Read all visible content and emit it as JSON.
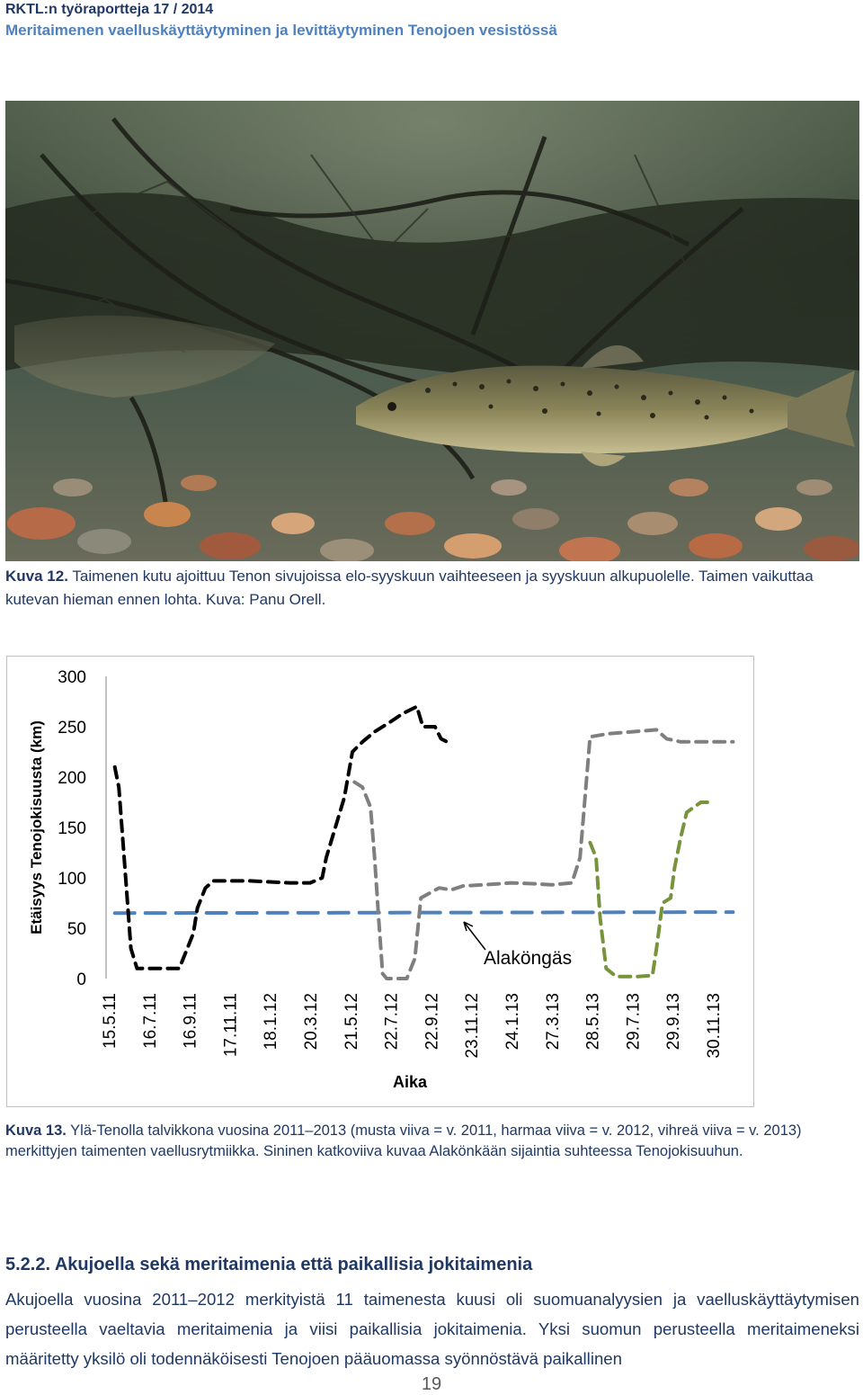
{
  "header": {
    "series": "RKTL:n työraportteja 17 / 2014",
    "title": "Meritaimenen vaelluskäyttäytyminen ja levittäytyminen Tenojoen vesistössä"
  },
  "figure12": {
    "caption_label": "Kuva 12.",
    "caption_text": "Taimenen kutu ajoittuu Tenon sivujoissa elo-syyskuun vaihteeseen ja syyskuun alkupuolelle. Taimen vaikuttaa kutevan hieman ennen lohta. Kuva: Panu Orell."
  },
  "chart_data": {
    "type": "line",
    "ylabel": "Etäisyys Tenojokisuusta (km)",
    "xlabel": "Aika",
    "ylim": [
      0,
      300
    ],
    "yticks": [
      "0",
      "50",
      "100",
      "150",
      "200",
      "250",
      "300"
    ],
    "xticks": [
      "15.5.11",
      "16.7.11",
      "16.9.11",
      "17.11.11",
      "18.1.12",
      "20.3.12",
      "21.5.12",
      "22.7.12",
      "22.9.12",
      "23.11.12",
      "24.1.13",
      "27.3.13",
      "28.5.13",
      "29.7.13",
      "29.9.13",
      "30.11.13"
    ],
    "annotation": "Alaköngäs",
    "series": [
      {
        "color": "#000000",
        "points": [
          [
            0.15,
            210
          ],
          [
            0.25,
            190
          ],
          [
            0.42,
            100
          ],
          [
            0.55,
            30
          ],
          [
            0.7,
            10
          ],
          [
            0.9,
            10
          ],
          [
            1.3,
            10
          ],
          [
            1.75,
            10
          ],
          [
            1.95,
            30
          ],
          [
            2.1,
            45
          ],
          [
            2.2,
            70
          ],
          [
            2.4,
            90
          ],
          [
            2.6,
            97
          ],
          [
            3.0,
            97
          ],
          [
            3.5,
            97
          ],
          [
            4.0,
            96
          ],
          [
            4.5,
            95
          ],
          [
            5.0,
            95
          ],
          [
            5.3,
            100
          ],
          [
            5.4,
            120
          ],
          [
            5.7,
            160
          ],
          [
            5.85,
            180
          ],
          [
            6.05,
            225
          ],
          [
            6.3,
            235
          ],
          [
            6.6,
            245
          ],
          [
            7.0,
            255
          ],
          [
            7.3,
            263
          ],
          [
            7.65,
            270
          ],
          [
            7.8,
            250
          ],
          [
            8.1,
            250
          ],
          [
            8.25,
            238
          ],
          [
            8.4,
            235
          ]
        ]
      },
      {
        "color": "#7f7f7f",
        "points": [
          [
            6.1,
            195
          ],
          [
            6.3,
            190
          ],
          [
            6.5,
            170
          ],
          [
            6.6,
            120
          ],
          [
            6.7,
            60
          ],
          [
            6.8,
            5
          ],
          [
            6.9,
            0
          ],
          [
            7.1,
            0
          ],
          [
            7.4,
            0
          ],
          [
            7.6,
            20
          ],
          [
            7.75,
            80
          ],
          [
            8.2,
            90
          ],
          [
            8.5,
            88
          ],
          [
            8.8,
            92
          ],
          [
            9.3,
            93
          ],
          [
            10.0,
            95
          ],
          [
            10.6,
            94
          ],
          [
            11.0,
            93
          ],
          [
            11.5,
            95
          ],
          [
            11.7,
            120
          ],
          [
            11.95,
            240
          ],
          [
            12.4,
            243
          ],
          [
            13.0,
            245
          ],
          [
            13.6,
            247
          ],
          [
            13.85,
            238
          ],
          [
            14.2,
            235
          ],
          [
            14.8,
            235
          ],
          [
            15.5,
            235
          ]
        ]
      },
      {
        "color": "#77933c",
        "points": [
          [
            11.95,
            135
          ],
          [
            12.1,
            120
          ],
          [
            12.2,
            60
          ],
          [
            12.35,
            10
          ],
          [
            12.6,
            2
          ],
          [
            13.1,
            2
          ],
          [
            13.5,
            3
          ],
          [
            13.6,
            30
          ],
          [
            13.75,
            75
          ],
          [
            13.95,
            80
          ],
          [
            14.05,
            110
          ],
          [
            14.2,
            140
          ],
          [
            14.35,
            165
          ],
          [
            14.7,
            175
          ],
          [
            14.9,
            175
          ]
        ]
      },
      {
        "color": "#4f81bd",
        "points": [
          [
            0.15,
            65
          ],
          [
            15.5,
            66
          ]
        ]
      }
    ]
  },
  "figure13": {
    "caption_label": "Kuva 13.",
    "caption_text": "Ylä-Tenolla talvikkona vuosina 2011–2013 (musta viiva = v. 2011, harmaa viiva = v. 2012, vihreä viiva = v. 2013) merkittyjen taimenten vaellusrytmiikka. Sininen katkoviiva kuvaa Alakönkään sijaintia suhteessa Tenojokisuuhun."
  },
  "section": {
    "heading": "5.2.2. Akujoella sekä meritaimenia että paikallisia jokitaimenia",
    "paragraph": "Akujoella vuosina 2011–2012 merkityistä 11 taimenesta kuusi oli suomuanalyysien ja vaelluskäyttäytymisen perusteella vaeltavia meritaimenia ja viisi paikallisia jokitaimenia. Yksi suomun perusteella meritaimeneksi määritetty yksilö oli todennäköisesti Tenojoen pääuomassa syönnöstävä paikallinen"
  },
  "page_number": "19"
}
